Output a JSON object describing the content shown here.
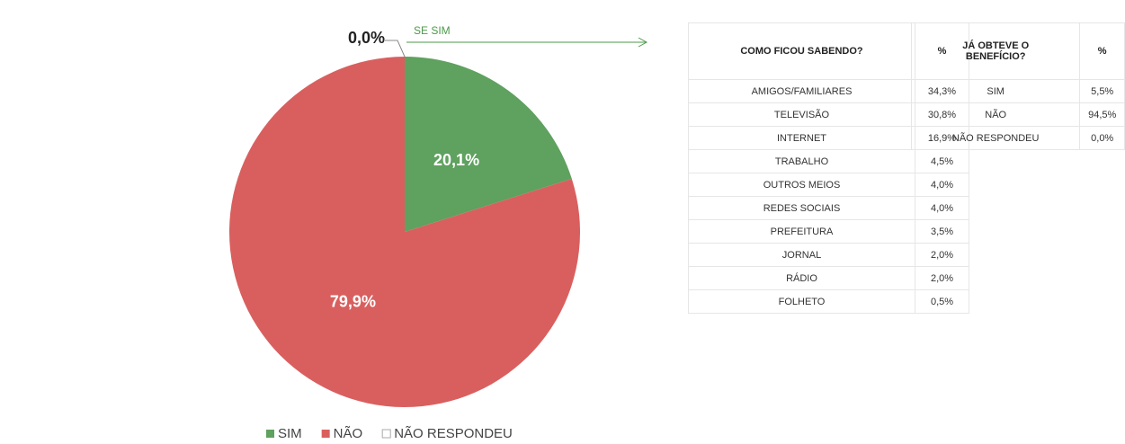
{
  "chart_data": {
    "type": "pie",
    "categories": [
      "SIM",
      "NÃO",
      "NÃO RESPONDEU"
    ],
    "values": [
      20.1,
      79.9,
      0.0
    ],
    "value_labels": [
      "20,1%",
      "79,9%",
      "0,0%"
    ],
    "colors": [
      "#5fa15f",
      "#d95f5f",
      "#ffffff"
    ],
    "annotation": "SE SIM",
    "legend": "bottom"
  },
  "tables": [
    {
      "header": [
        "COMO FICOU SABENDO?",
        "%"
      ],
      "rows": [
        [
          "AMIGOS/FAMILIARES",
          "34,3%"
        ],
        [
          "TELEVISÃO",
          "30,8%"
        ],
        [
          "INTERNET",
          "16,9%"
        ],
        [
          "TRABALHO",
          "4,5%"
        ],
        [
          "OUTROS MEIOS",
          "4,0%"
        ],
        [
          "REDES SOCIAIS",
          "4,0%"
        ],
        [
          "PREFEITURA",
          "3,5%"
        ],
        [
          "JORNAL",
          "2,0%"
        ],
        [
          "RÁDIO",
          "2,0%"
        ],
        [
          "FOLHETO",
          "0,5%"
        ]
      ]
    },
    {
      "header": [
        "JÁ OBTEVE O BENEFÍCIO?",
        "%"
      ],
      "rows": [
        [
          "SIM",
          "5,5%"
        ],
        [
          "NÃO",
          "94,5%"
        ],
        [
          "NÃO RESPONDEU",
          "0,0%"
        ]
      ]
    }
  ]
}
